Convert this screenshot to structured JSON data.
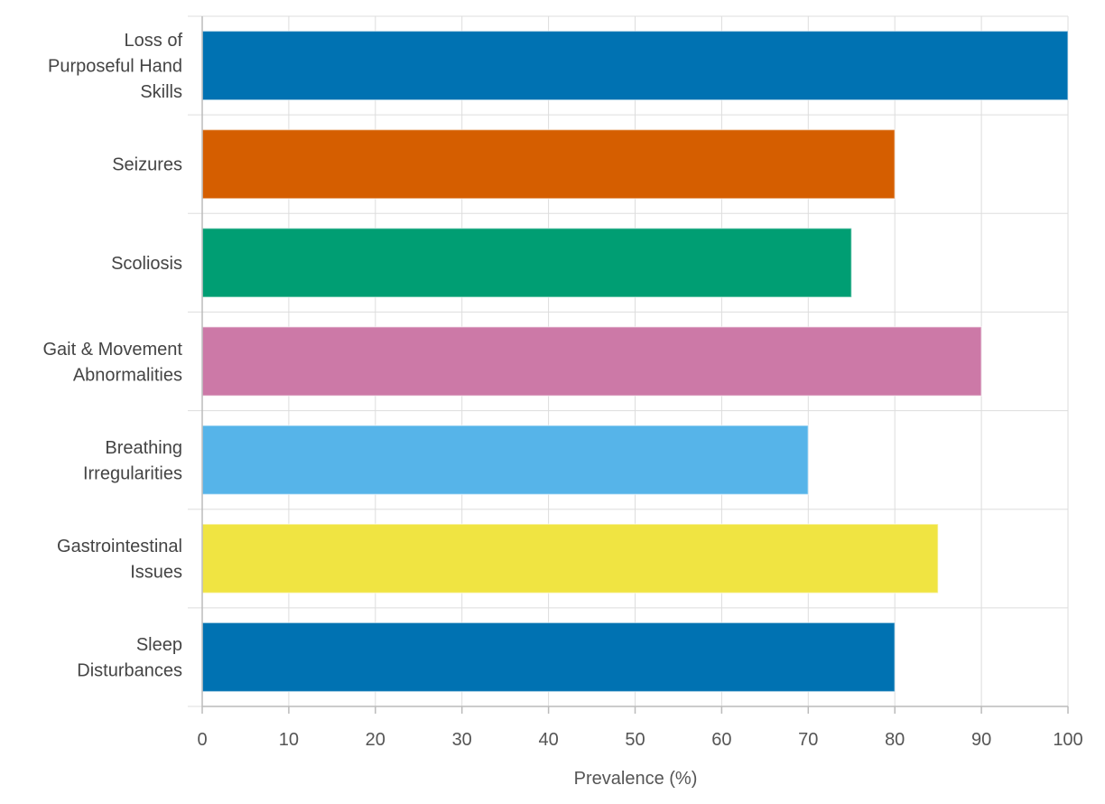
{
  "chart_data": {
    "type": "bar",
    "orientation": "horizontal",
    "title": "",
    "xlabel": "Prevalence (%)",
    "ylabel": "",
    "xlim": [
      0,
      100
    ],
    "x_ticks": [
      0,
      10,
      20,
      30,
      40,
      50,
      60,
      70,
      80,
      90,
      100
    ],
    "grid": true,
    "legend": "none",
    "categories": [
      [
        "Loss of",
        "Purposeful Hand",
        "Skills"
      ],
      [
        "Seizures"
      ],
      [
        "Scoliosis"
      ],
      [
        "Gait & Movement",
        "Abnormalities"
      ],
      [
        "Breathing",
        "Irregularities"
      ],
      [
        "Gastrointestinal",
        "Issues"
      ],
      [
        "Sleep",
        "Disturbances"
      ]
    ],
    "values": [
      100,
      80,
      75,
      90,
      70,
      85,
      80
    ],
    "colors": [
      "#0072b2",
      "#d55e00",
      "#009e73",
      "#cc79a7",
      "#56b4e9",
      "#f0e442",
      "#0072b2"
    ],
    "grid_color": "#dddddd",
    "axis_color": "#bbbbbb"
  }
}
